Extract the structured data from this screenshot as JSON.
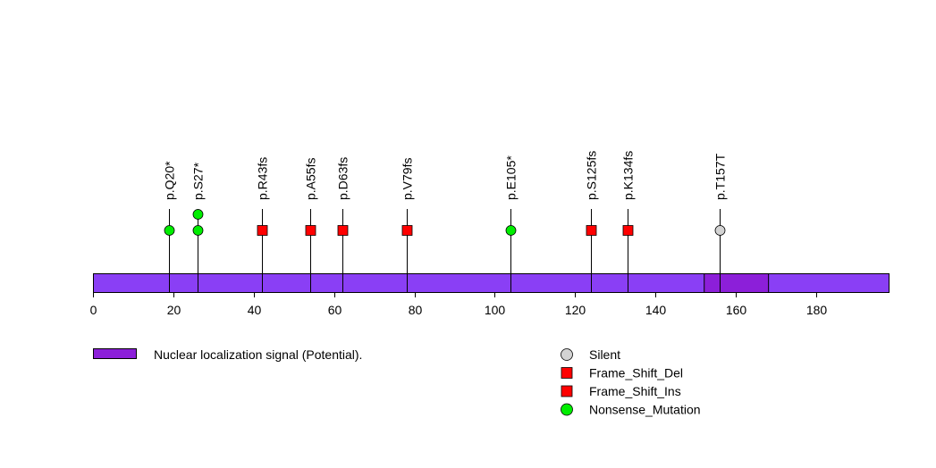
{
  "chart_data": {
    "type": "lollipop",
    "title": "",
    "xlabel": "",
    "ylabel": "",
    "protein_length": 198,
    "xlim": [
      0,
      198
    ],
    "ticks": [
      0,
      20,
      40,
      60,
      80,
      100,
      120,
      140,
      160,
      180
    ],
    "domains": [
      {
        "name": "Nuclear localization signal (Potential).",
        "start": 152,
        "end": 168,
        "color": "#8c1fd9"
      }
    ],
    "backbone_color": "#8a3ff5",
    "mutations": [
      {
        "label": "p.Q20*",
        "position": 19,
        "count": 1,
        "type": "Nonsense_Mutation"
      },
      {
        "label": "p.S27*",
        "position": 26,
        "count": 2,
        "type": "Nonsense_Mutation"
      },
      {
        "label": "p.R43fs",
        "position": 42,
        "count": 1,
        "type": "Frame_Shift_Del"
      },
      {
        "label": "p.A55fs",
        "position": 54,
        "count": 1,
        "type": "Frame_Shift_Del"
      },
      {
        "label": "p.D63fs",
        "position": 62,
        "count": 1,
        "type": "Frame_Shift_Del"
      },
      {
        "label": "p.V79fs",
        "position": 78,
        "count": 1,
        "type": "Frame_Shift_Del"
      },
      {
        "label": "p.E105*",
        "position": 104,
        "count": 1,
        "type": "Nonsense_Mutation"
      },
      {
        "label": "p.S125fs",
        "position": 124,
        "count": 1,
        "type": "Frame_Shift_Del"
      },
      {
        "label": "p.K134fs",
        "position": 133,
        "count": 1,
        "type": "Frame_Shift_Del"
      },
      {
        "label": "p.T157T",
        "position": 156,
        "count": 1,
        "type": "Silent"
      }
    ],
    "mutation_types": [
      {
        "name": "Silent",
        "shape": "circle",
        "color": "#d3d3d3"
      },
      {
        "name": "Frame_Shift_Del",
        "shape": "square",
        "color": "#ff0000"
      },
      {
        "name": "Frame_Shift_Ins",
        "shape": "square",
        "color": "#ff0000"
      },
      {
        "name": "Nonsense_Mutation",
        "shape": "circle",
        "color": "#00ee00"
      }
    ],
    "legend": {
      "domains_placement": "bottom-left",
      "types_placement": "bottom-center"
    }
  }
}
